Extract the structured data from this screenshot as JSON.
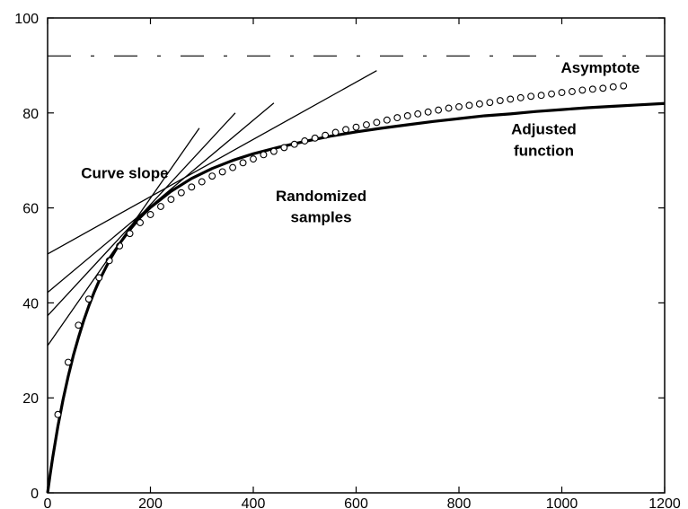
{
  "chart_data": {
    "type": "line",
    "title": "",
    "xlabel": "",
    "ylabel": "",
    "xlim": [
      0,
      1200
    ],
    "ylim": [
      0,
      100
    ],
    "x_ticks": [
      0,
      200,
      400,
      600,
      800,
      1000,
      1200
    ],
    "y_ticks": [
      0,
      20,
      40,
      60,
      80,
      100
    ],
    "grid": false,
    "legend": "none",
    "annotations": [
      {
        "text": "Asymptote",
        "x": 1075,
        "y": 88.5
      },
      {
        "text": "Adjusted",
        "x": 965,
        "y": 75.5
      },
      {
        "text": "function",
        "x": 965,
        "y": 71.0
      },
      {
        "text": "Curve slope",
        "x": 150,
        "y": 66.3
      },
      {
        "text": "Randomized",
        "x": 532,
        "y": 61.4
      },
      {
        "text": "samples",
        "x": 532,
        "y": 57.0
      }
    ],
    "series": [
      {
        "kind": "asymptote",
        "style": "dashed",
        "color": "#000000",
        "x": [
          0,
          1200
        ],
        "y": [
          92,
          92
        ]
      },
      {
        "kind": "adjusted-function",
        "style": "solid-thick",
        "color": "#000000",
        "x": [
          0,
          5,
          10,
          20,
          30,
          40,
          50,
          60,
          70,
          80,
          90,
          100,
          120,
          140,
          160,
          180,
          200,
          240,
          280,
          320,
          360,
          400,
          450,
          500,
          550,
          600,
          650,
          700,
          750,
          800,
          850,
          900,
          950,
          1000,
          1050,
          1100,
          1150,
          1200
        ],
        "y": [
          0,
          3.9,
          7.5,
          14.0,
          19.6,
          24.5,
          28.9,
          32.7,
          36.2,
          39.3,
          42.1,
          44.6,
          48.9,
          52.5,
          55.4,
          58.0,
          60.1,
          63.5,
          66.2,
          68.3,
          70.0,
          71.4,
          72.8,
          74.0,
          75.1,
          76.0,
          76.8,
          77.5,
          78.2,
          78.8,
          79.4,
          79.8,
          80.3,
          80.7,
          81.1,
          81.4,
          81.7,
          82.0
        ]
      },
      {
        "kind": "randomized-samples",
        "style": "open-circle",
        "color": "#000000",
        "x": [
          20,
          40,
          60,
          80,
          100,
          120,
          140,
          160,
          180,
          200,
          220,
          240,
          260,
          280,
          300,
          320,
          340,
          360,
          380,
          400,
          420,
          440,
          460,
          480,
          500,
          520,
          540,
          560,
          580,
          600,
          620,
          640,
          660,
          680,
          700,
          720,
          740,
          760,
          780,
          800,
          820,
          840,
          860,
          880,
          900,
          920,
          940,
          960,
          980,
          1000,
          1020,
          1040,
          1060,
          1080,
          1100,
          1120
        ],
        "y": [
          16.5,
          27.5,
          35.3,
          40.8,
          45.3,
          48.9,
          52.0,
          54.6,
          56.9,
          58.6,
          60.3,
          61.8,
          63.2,
          64.4,
          65.5,
          66.7,
          67.6,
          68.5,
          69.5,
          70.3,
          71.2,
          71.9,
          72.7,
          73.4,
          74.1,
          74.7,
          75.3,
          75.9,
          76.5,
          77.0,
          77.5,
          78.0,
          78.5,
          79.0,
          79.4,
          79.8,
          80.2,
          80.6,
          81.0,
          81.3,
          81.6,
          81.9,
          82.2,
          82.6,
          82.9,
          83.2,
          83.5,
          83.7,
          84.0,
          84.3,
          84.5,
          84.8,
          85.0,
          85.2,
          85.5,
          85.7
        ]
      },
      {
        "kind": "tangent",
        "style": "solid-thin",
        "color": "#000000",
        "x": [
          0,
          640
        ],
        "y": [
          50.3,
          88.9
        ]
      },
      {
        "kind": "tangent",
        "style": "solid-thin",
        "color": "#000000",
        "x": [
          0,
          440
        ],
        "y": [
          42.2,
          82.1
        ]
      },
      {
        "kind": "tangent",
        "style": "solid-thin",
        "color": "#000000",
        "x": [
          0,
          365
        ],
        "y": [
          37.3,
          80.0
        ]
      },
      {
        "kind": "tangent",
        "style": "solid-thin",
        "color": "#000000",
        "x": [
          0,
          295
        ],
        "y": [
          31.0,
          76.8
        ]
      }
    ]
  }
}
